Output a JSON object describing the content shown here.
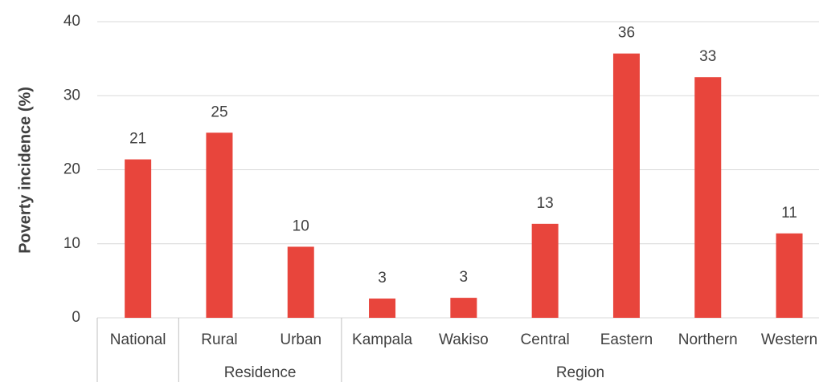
{
  "chart_data": {
    "type": "bar",
    "y_label": "Poverty incidence (%)",
    "groups": [
      {
        "name": null,
        "categories": [
          "National"
        ]
      },
      {
        "name": "Residence",
        "categories": [
          "Rural",
          "Urban"
        ]
      },
      {
        "name": "Region",
        "categories": [
          "Kampala",
          "Wakiso",
          "Central",
          "Eastern",
          "Northern",
          "Western"
        ]
      }
    ],
    "values": [
      21.4,
      25.0,
      9.6,
      2.6,
      2.7,
      12.7,
      35.7,
      32.5,
      11.4
    ],
    "value_labels": [
      "21",
      "25",
      "10",
      "3",
      "3",
      "13",
      "36",
      "33",
      "11"
    ],
    "color": "#e8453c",
    "ylim": [
      0,
      40
    ],
    "yticks": [
      0,
      10,
      20,
      30,
      40
    ],
    "grid": true
  }
}
